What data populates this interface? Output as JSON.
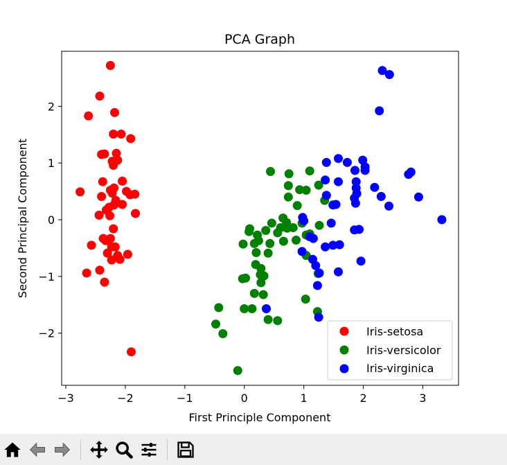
{
  "chart_data": {
    "type": "scatter",
    "title": "PCA Graph",
    "xlabel": "First Principle Component",
    "ylabel": "Second Principal Component",
    "xlim": [
      -3.07,
      3.6
    ],
    "ylim": [
      -2.92,
      2.97
    ],
    "xticks": [
      -3,
      -2,
      -1,
      0,
      1,
      2,
      3
    ],
    "yticks": [
      -2,
      -1,
      0,
      1,
      2
    ],
    "tick_labels_x": [
      "−3",
      "−2",
      "−1",
      "0",
      "1",
      "2",
      "3"
    ],
    "tick_labels_y": [
      "−2",
      "−1",
      "0",
      "1",
      "2"
    ],
    "legend_position": "lower-right",
    "series": [
      {
        "name": "Iris-setosa",
        "color": "#ff0000",
        "points": [
          [
            -2.25,
            2.72
          ],
          [
            -2.43,
            2.18
          ],
          [
            -2.62,
            1.83
          ],
          [
            -2.18,
            1.89
          ],
          [
            -2.2,
            1.51
          ],
          [
            -2.07,
            1.51
          ],
          [
            -1.91,
            1.43
          ],
          [
            -2.4,
            1.15
          ],
          [
            -2.35,
            1.16
          ],
          [
            -2.15,
            1.17
          ],
          [
            -2.22,
            1.03
          ],
          [
            -2.2,
            0.96
          ],
          [
            -2.13,
            1.05
          ],
          [
            -2.38,
            0.67
          ],
          [
            -2.05,
            0.68
          ],
          [
            -2.25,
            0.52
          ],
          [
            -2.19,
            0.56
          ],
          [
            -2.22,
            0.47
          ],
          [
            -2.76,
            0.49
          ],
          [
            -1.98,
            0.5
          ],
          [
            -1.92,
            0.44
          ],
          [
            -1.84,
            0.45
          ],
          [
            -2.4,
            0.41
          ],
          [
            -2.16,
            0.34
          ],
          [
            -2.27,
            0.22
          ],
          [
            -2.32,
            0.17
          ],
          [
            -2.05,
            0.27
          ],
          [
            -2.19,
            0.26
          ],
          [
            -2.44,
            0.08
          ],
          [
            -2.26,
            0.07
          ],
          [
            -1.83,
            0.11
          ],
          [
            -2.2,
            -0.16
          ],
          [
            -2.37,
            -0.33
          ],
          [
            -2.33,
            -0.37
          ],
          [
            -2.25,
            -0.33
          ],
          [
            -2.57,
            -0.45
          ],
          [
            -2.17,
            -0.48
          ],
          [
            -2.23,
            -0.48
          ],
          [
            -2.3,
            -0.59
          ],
          [
            -2.13,
            -0.63
          ],
          [
            -1.96,
            -0.61
          ],
          [
            -2.09,
            -0.7
          ],
          [
            -2.23,
            -0.71
          ],
          [
            -2.43,
            -0.89
          ],
          [
            -2.65,
            -0.94
          ],
          [
            -2.35,
            -1.1
          ],
          [
            -1.9,
            -2.33
          ]
        ]
      },
      {
        "name": "Iris-versicolor",
        "color": "#008000",
        "points": [
          [
            0.44,
            0.85
          ],
          [
            1.1,
            0.86
          ],
          [
            0.75,
            0.81
          ],
          [
            0.74,
            0.6
          ],
          [
            0.93,
            0.53
          ],
          [
            1.04,
            0.52
          ],
          [
            1.25,
            0.61
          ],
          [
            0.74,
            0.4
          ],
          [
            1.35,
            0.34
          ],
          [
            0.89,
            0.25
          ],
          [
            0.65,
            0.03
          ],
          [
            0.46,
            -0.06
          ],
          [
            0.71,
            -0.05
          ],
          [
            0.82,
            -0.14
          ],
          [
            0.72,
            -0.15
          ],
          [
            0.61,
            -0.14
          ],
          [
            0.09,
            -0.16
          ],
          [
            0.08,
            -0.21
          ],
          [
            0.36,
            -0.19
          ],
          [
            0.22,
            -0.27
          ],
          [
            0.56,
            -0.23
          ],
          [
            0.97,
            -0.06
          ],
          [
            1.1,
            -0.25
          ],
          [
            1.26,
            -0.1
          ],
          [
            1.04,
            -0.27
          ],
          [
            -0.02,
            -0.43
          ],
          [
            0.24,
            -0.37
          ],
          [
            0.17,
            -0.42
          ],
          [
            0.43,
            -0.42
          ],
          [
            0.66,
            -0.38
          ],
          [
            0.87,
            -0.36
          ],
          [
            0.2,
            -0.58
          ],
          [
            0.4,
            -0.59
          ],
          [
            1.04,
            -0.63
          ],
          [
            0.19,
            -0.79
          ],
          [
            0.28,
            -0.86
          ],
          [
            0.27,
            -0.97
          ],
          [
            0.33,
            -0.99
          ],
          [
            -0.03,
            -1.04
          ],
          [
            0.02,
            -1.03
          ],
          [
            0.28,
            -1.11
          ],
          [
            0.17,
            -1.3
          ],
          [
            0.32,
            -1.32
          ],
          [
            1.24,
            -0.95
          ],
          [
            1.03,
            -1.4
          ],
          [
            0.0,
            -1.57
          ],
          [
            0.13,
            -1.57
          ],
          [
            -0.43,
            -1.55
          ],
          [
            0.4,
            -1.76
          ],
          [
            0.56,
            -1.78
          ],
          [
            1.23,
            -1.62
          ],
          [
            -0.48,
            -1.84
          ],
          [
            -0.36,
            -2.01
          ],
          [
            -0.11,
            -2.66
          ]
        ]
      },
      {
        "name": "Iris-virginica",
        "color": "#0000ff",
        "points": [
          [
            2.32,
            2.63
          ],
          [
            2.44,
            2.56
          ],
          [
            2.27,
            1.92
          ],
          [
            1.38,
            1.01
          ],
          [
            1.58,
            1.08
          ],
          [
            1.73,
            1.01
          ],
          [
            1.99,
            1.05
          ],
          [
            2.03,
            0.93
          ],
          [
            1.86,
            0.87
          ],
          [
            2.03,
            0.87
          ],
          [
            2.76,
            0.8
          ],
          [
            2.8,
            0.84
          ],
          [
            1.36,
            0.7
          ],
          [
            1.58,
            0.67
          ],
          [
            1.88,
            0.67
          ],
          [
            1.88,
            0.56
          ],
          [
            2.19,
            0.57
          ],
          [
            1.89,
            0.46
          ],
          [
            2.3,
            0.41
          ],
          [
            1.38,
            0.43
          ],
          [
            1.85,
            0.38
          ],
          [
            1.87,
            0.29
          ],
          [
            1.49,
            0.26
          ],
          [
            1.54,
            0.27
          ],
          [
            2.93,
            0.4
          ],
          [
            2.43,
            0.24
          ],
          [
            3.32,
            0.0
          ],
          [
            0.98,
            0.04
          ],
          [
            1.0,
            -0.02
          ],
          [
            1.46,
            -0.06
          ],
          [
            1.85,
            -0.18
          ],
          [
            1.93,
            -0.17
          ],
          [
            1.1,
            -0.3
          ],
          [
            1.16,
            -0.33
          ],
          [
            1.36,
            -0.48
          ],
          [
            1.49,
            -0.45
          ],
          [
            1.6,
            -0.44
          ],
          [
            0.97,
            -0.56
          ],
          [
            1.15,
            -0.7
          ],
          [
            1.2,
            -0.81
          ],
          [
            1.96,
            -0.73
          ],
          [
            1.26,
            -0.94
          ],
          [
            1.58,
            -0.92
          ],
          [
            1.23,
            -1.16
          ],
          [
            0.37,
            -1.57
          ],
          [
            1.25,
            -1.72
          ]
        ]
      }
    ]
  },
  "icons": {
    "home": "home-icon",
    "back": "back-arrow-icon",
    "forward": "forward-arrow-icon",
    "pan": "move-icon",
    "zoom": "zoom-icon",
    "configure": "sliders-icon",
    "save": "save-icon"
  }
}
